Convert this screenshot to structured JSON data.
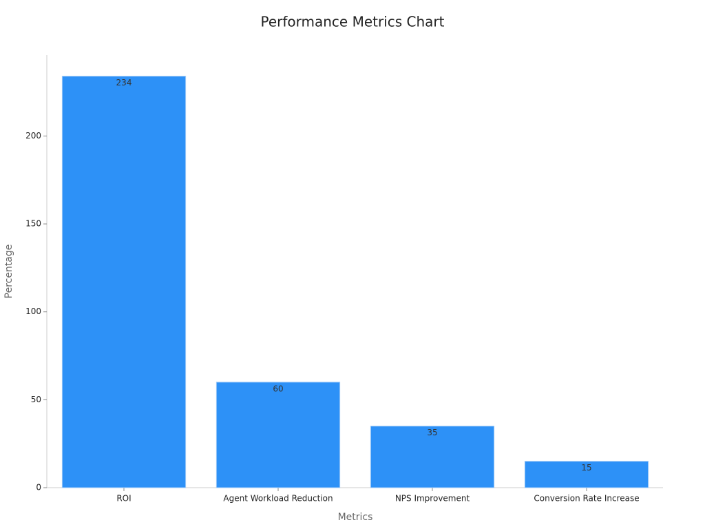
{
  "chart_data": {
    "type": "bar",
    "title": "Performance Metrics Chart",
    "x_label": "Metrics",
    "y_label": "Percentage",
    "categories": [
      "ROI",
      "Agent Workload Reduction",
      "NPS Improvement",
      "Conversion Rate Increase"
    ],
    "values": [
      234,
      60,
      35,
      15
    ],
    "color": "#2d91f7",
    "ylim": [
      0,
      246
    ],
    "yticks": [
      0,
      50,
      100,
      150,
      200
    ],
    "grid": false
  }
}
